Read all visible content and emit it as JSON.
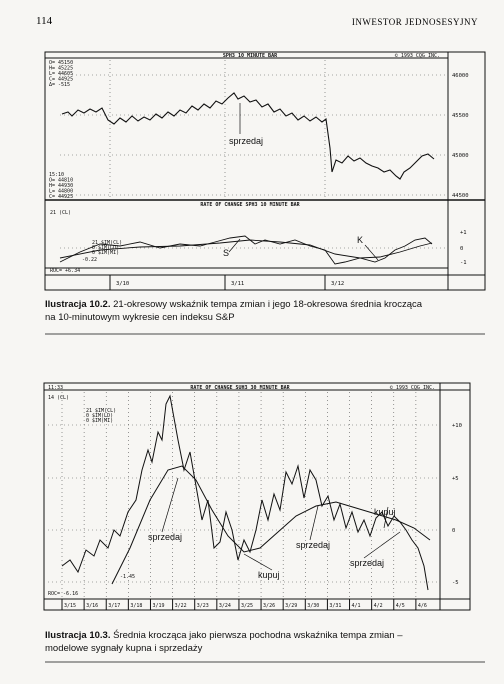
{
  "header": {
    "page_number": "114",
    "running_title": "INWESTOR JEDNOSESYJNY"
  },
  "figure_1": {
    "chart_title": "SPH3 10 MINUTE BAR",
    "copyright": "© 1993 CQG INC.",
    "quote_top": [
      "O= 45150",
      "H= 45225",
      "L= 44605",
      "C= 44925",
      "Δ= -515"
    ],
    "quote_bottom": [
      "15:10",
      "O= 44810",
      "H= 44930",
      "L= 44800",
      "C= 44925"
    ],
    "price_labels": [
      "46000",
      "45500",
      "45000",
      "44500"
    ],
    "annotation": "sprzedaj",
    "indicator_title": "RATE OF CHANGE SPH3 10 MINUTE BAR",
    "indicator_period": "21 (CL)",
    "indicator_legend": [
      "21 $IM(CL)",
      "0 $IM(LD)",
      "0 $IM(MI)"
    ],
    "indicator_value": "-0.22",
    "roc": "ROC= +6.34",
    "signals": [
      "S",
      "K"
    ],
    "indicator_labels": [
      "+1",
      "0",
      "-1"
    ],
    "dates": [
      "3/10",
      "3/11",
      "3/12"
    ],
    "caption": {
      "label": "Ilustracja 10.2.",
      "text": "21-okresowy wskaźnik tempa zmian i jego 18-okresowa średnia krocząca na 10-minutowym wykresie cen indeksu S&P"
    }
  },
  "figure_2": {
    "time": "11:33",
    "chart_title": "RATE OF CHANGE SUH3 30 MINUTE BAR",
    "copyright": "© 1993 CQG INC.",
    "indicator_period": "14 (CL)",
    "indicator_legend": [
      "21 $IM(CL)",
      "0 $IM(LD)",
      "0 $IM(MI)"
    ],
    "axis_labels": [
      "+10",
      "+5",
      "0",
      "-5"
    ],
    "annotations": [
      "sprzedaj",
      "sprzedaj",
      "sprzedaj",
      "kupuj",
      "kupuj"
    ],
    "low_value": "-1.45",
    "roc": "ROC= -6.16",
    "dates": [
      "3/15",
      "3/16",
      "3/17",
      "3/18",
      "3/19",
      "3/22",
      "3/23",
      "3/24",
      "3/25",
      "3/26",
      "3/29",
      "3/30",
      "3/31",
      "4/1",
      "4/2",
      "4/5",
      "4/6"
    ],
    "caption": {
      "label": "Ilustracja 10.3.",
      "text": "Średnia krocząca jako pierwsza pochodna wskaźnika tempa zmian – modelowe sygnały kupna i sprzedaży"
    }
  }
}
